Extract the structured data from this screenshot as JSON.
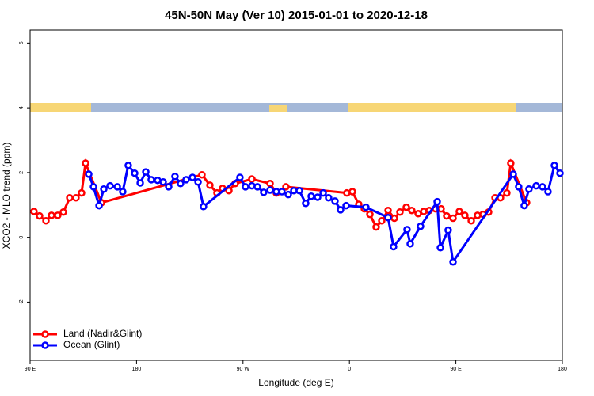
{
  "chart_data": {
    "type": "line",
    "title": "45N-50N May (Ver 10)   2015-01-01 to 2020-12-18",
    "x_label": "Longitude (deg E)",
    "y_label": "XCO2 - MLO trend (ppm)",
    "xlim": [
      90,
      540
    ],
    "xticks": [
      {
        "value": 90,
        "label": "90 E"
      },
      {
        "value": 180,
        "label": "180"
      },
      {
        "value": 270,
        "label": "90 W"
      },
      {
        "value": 360,
        "label": "0"
      },
      {
        "value": 450,
        "label": "90 E"
      },
      {
        "value": 540,
        "label": "180"
      }
    ],
    "ylim": [
      -3.8,
      6.4
    ],
    "yticks": [
      -2,
      0,
      2,
      4,
      6
    ],
    "legend": "bottom-left",
    "series": [
      {
        "name": "Land (Nadir&Glint)",
        "color": "#ff0000",
        "x": [
          93.3,
          98.0,
          103.4,
          108.1,
          113.4,
          118.1,
          123.5,
          128.8,
          133.5,
          136.9,
          150.3,
          235.3,
          242.0,
          248.0,
          252.7,
          258.1,
          263.4,
          277.5,
          292.9,
          298.2,
          306.3,
          357.8,
          362.5,
          367.9,
          372.6,
          377.3,
          382.6,
          387.3,
          392.7,
          398.0,
          402.7,
          408.1,
          412.7,
          418.1,
          422.8,
          427.5,
          432.8,
          437.5,
          442.2,
          447.6,
          452.9,
          457.6,
          463.0,
          468.3,
          473.0,
          477.7,
          483.1,
          487.7,
          493.1,
          496.4,
          509.8
        ],
        "values": [
          0.8,
          0.66,
          0.51,
          0.68,
          0.68,
          0.78,
          1.22,
          1.22,
          1.37,
          2.29,
          1.07,
          1.93,
          1.61,
          1.37,
          1.51,
          1.44,
          1.66,
          1.8,
          1.66,
          1.37,
          1.56,
          1.37,
          1.41,
          1.02,
          0.88,
          0.71,
          0.32,
          0.51,
          0.83,
          0.59,
          0.78,
          0.93,
          0.83,
          0.73,
          0.8,
          0.83,
          0.88,
          0.88,
          0.66,
          0.59,
          0.8,
          0.68,
          0.51,
          0.68,
          0.71,
          0.78,
          1.22,
          1.22,
          1.37,
          2.29,
          1.07
        ]
      },
      {
        "name": "Ocean (Glint)",
        "color": "#0000ff",
        "x": [
          139.6,
          143.6,
          148.3,
          152.3,
          157.6,
          163.7,
          168.3,
          173.0,
          178.4,
          183.1,
          187.8,
          192.4,
          197.8,
          202.5,
          207.2,
          212.5,
          217.2,
          221.9,
          227.3,
          232.0,
          236.6,
          267.4,
          272.1,
          277.5,
          282.2,
          287.5,
          292.9,
          298.2,
          302.9,
          308.3,
          313.0,
          317.7,
          323.0,
          327.7,
          333.1,
          337.8,
          342.4,
          347.8,
          352.5,
          357.2,
          373.9,
          392.7,
          397.3,
          408.7,
          411.4,
          420.1,
          434.2,
          436.9,
          443.5,
          447.6,
          498.5,
          503.1,
          507.8,
          511.8,
          517.9,
          523.2,
          527.9,
          533.3,
          538.0
        ],
        "values": [
          1.95,
          1.56,
          0.98,
          1.49,
          1.59,
          1.56,
          1.41,
          2.22,
          1.98,
          1.68,
          2.02,
          1.78,
          1.76,
          1.71,
          1.56,
          1.88,
          1.66,
          1.78,
          1.85,
          1.71,
          0.95,
          1.85,
          1.56,
          1.59,
          1.56,
          1.39,
          1.46,
          1.41,
          1.41,
          1.32,
          1.44,
          1.44,
          1.05,
          1.27,
          1.24,
          1.37,
          1.22,
          1.12,
          0.85,
          0.98,
          0.93,
          0.61,
          -0.29,
          0.24,
          -0.2,
          0.34,
          1.1,
          -0.32,
          0.22,
          -0.76,
          1.95,
          1.56,
          0.98,
          1.49,
          1.59,
          1.56,
          1.41,
          2.22,
          1.98
        ]
      }
    ]
  }
}
